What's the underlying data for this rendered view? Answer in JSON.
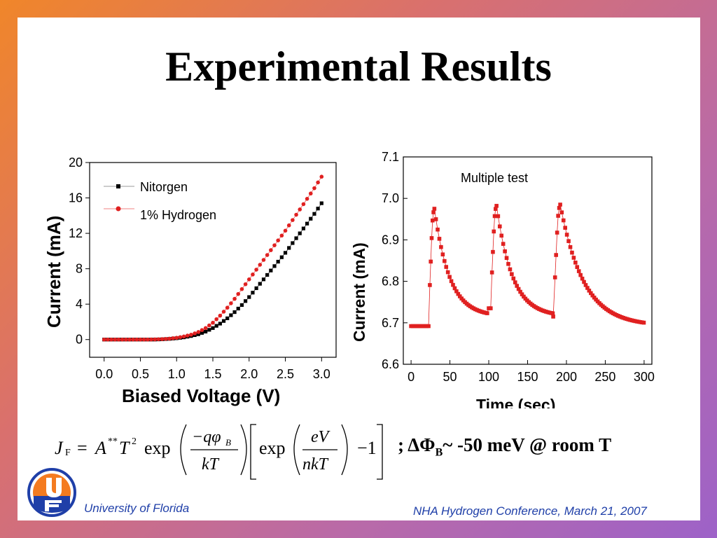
{
  "slide": {
    "title": "Experimental Results",
    "footer_left": "University of Florida",
    "footer_right": "NHA Hydrogen Conference, March 21, 2007"
  },
  "chart_data": [
    {
      "type": "scatter",
      "title": "",
      "xlabel": "Biased Voltage (V)",
      "ylabel": "Current (mA)",
      "xlim": [
        -0.2,
        3.2
      ],
      "ylim": [
        -2,
        20
      ],
      "xticks": [
        "0.0",
        "0.5",
        "1.0",
        "1.5",
        "2.0",
        "2.5",
        "3.0"
      ],
      "yticks": [
        "0",
        "4",
        "8",
        "12",
        "16",
        "20"
      ],
      "legend": "top-left",
      "series": [
        {
          "name": "Nitorgen",
          "color": "#000000",
          "marker": "square",
          "x": [
            0.0,
            0.1,
            0.2,
            0.3,
            0.4,
            0.5,
            0.6,
            0.7,
            0.8,
            0.9,
            1.0,
            1.1,
            1.2,
            1.3,
            1.4,
            1.5,
            1.6,
            1.7,
            1.8,
            1.9,
            2.0,
            2.1,
            2.2,
            2.3,
            2.4,
            2.5,
            2.6,
            2.7,
            2.8,
            2.9,
            3.0
          ],
          "y": [
            0,
            0,
            0,
            0,
            0,
            0,
            0,
            0,
            0.03,
            0.08,
            0.15,
            0.25,
            0.4,
            0.6,
            0.9,
            1.3,
            1.8,
            2.4,
            3.1,
            3.9,
            4.8,
            5.8,
            6.8,
            7.8,
            8.8,
            9.8,
            10.9,
            12.0,
            13.1,
            14.2,
            15.4
          ]
        },
        {
          "name": "1% Hydrogen",
          "color": "#e02020",
          "marker": "circle",
          "x": [
            0.0,
            0.1,
            0.2,
            0.3,
            0.4,
            0.5,
            0.6,
            0.7,
            0.8,
            0.9,
            1.0,
            1.1,
            1.2,
            1.3,
            1.4,
            1.5,
            1.6,
            1.7,
            1.8,
            1.9,
            2.0,
            2.1,
            2.2,
            2.3,
            2.4,
            2.5,
            2.6,
            2.7,
            2.8,
            2.9,
            3.0
          ],
          "y": [
            0,
            0,
            0,
            0,
            0,
            0,
            0,
            0.02,
            0.05,
            0.1,
            0.2,
            0.35,
            0.55,
            0.85,
            1.3,
            1.9,
            2.7,
            3.6,
            4.6,
            5.7,
            6.8,
            7.9,
            9.0,
            10.1,
            11.2,
            12.3,
            13.5,
            14.7,
            15.9,
            17.1,
            18.4
          ]
        }
      ]
    },
    {
      "type": "line",
      "title": "Multiple test",
      "xlabel": "Time (sec)",
      "ylabel": "Current (mA)",
      "xlim": [
        -10,
        310
      ],
      "ylim": [
        6.6,
        7.1
      ],
      "xticks": [
        "0",
        "50",
        "100",
        "150",
        "200",
        "250",
        "300"
      ],
      "yticks": [
        "6.6",
        "6.7",
        "6.8",
        "6.9",
        "7.0",
        "7.1"
      ],
      "series": [
        {
          "name": "",
          "color": "#e02020",
          "marker": "square",
          "cycles": [
            {
              "base_start": 0,
              "base_end": 23,
              "on": 23,
              "peak_t": 30,
              "off": 30,
              "decay_end": 100,
              "base": 6.692,
              "peak": 6.975,
              "end": 6.715
            },
            {
              "base_start": 100,
              "base_end": 103,
              "on": 103,
              "peak_t": 110,
              "off": 110,
              "decay_end": 183,
              "base": 6.735,
              "peak": 6.982,
              "end": 6.715
            },
            {
              "base_start": 183,
              "base_end": 184,
              "on": 184,
              "peak_t": 192,
              "off": 192,
              "decay_end": 300,
              "base": 6.715,
              "peak": 6.985,
              "end": 6.692
            }
          ]
        }
      ]
    }
  ],
  "formula": {
    "lhs": "J",
    "lhs_sub": "F",
    "eq": "=",
    "A": "A",
    "A_sup": "**",
    "T": "T",
    "T_sup": "2",
    "exp1": "exp",
    "num1": "−qφ",
    "num1_sub": "B",
    "den1": "kT",
    "exp2": "exp",
    "num2": "eV",
    "den2": "nkT",
    "minus_one": "−1"
  },
  "condition": {
    "prefix": "; ΔΦ",
    "sub": "B",
    "suffix": "~ -50 meV @ room T"
  }
}
